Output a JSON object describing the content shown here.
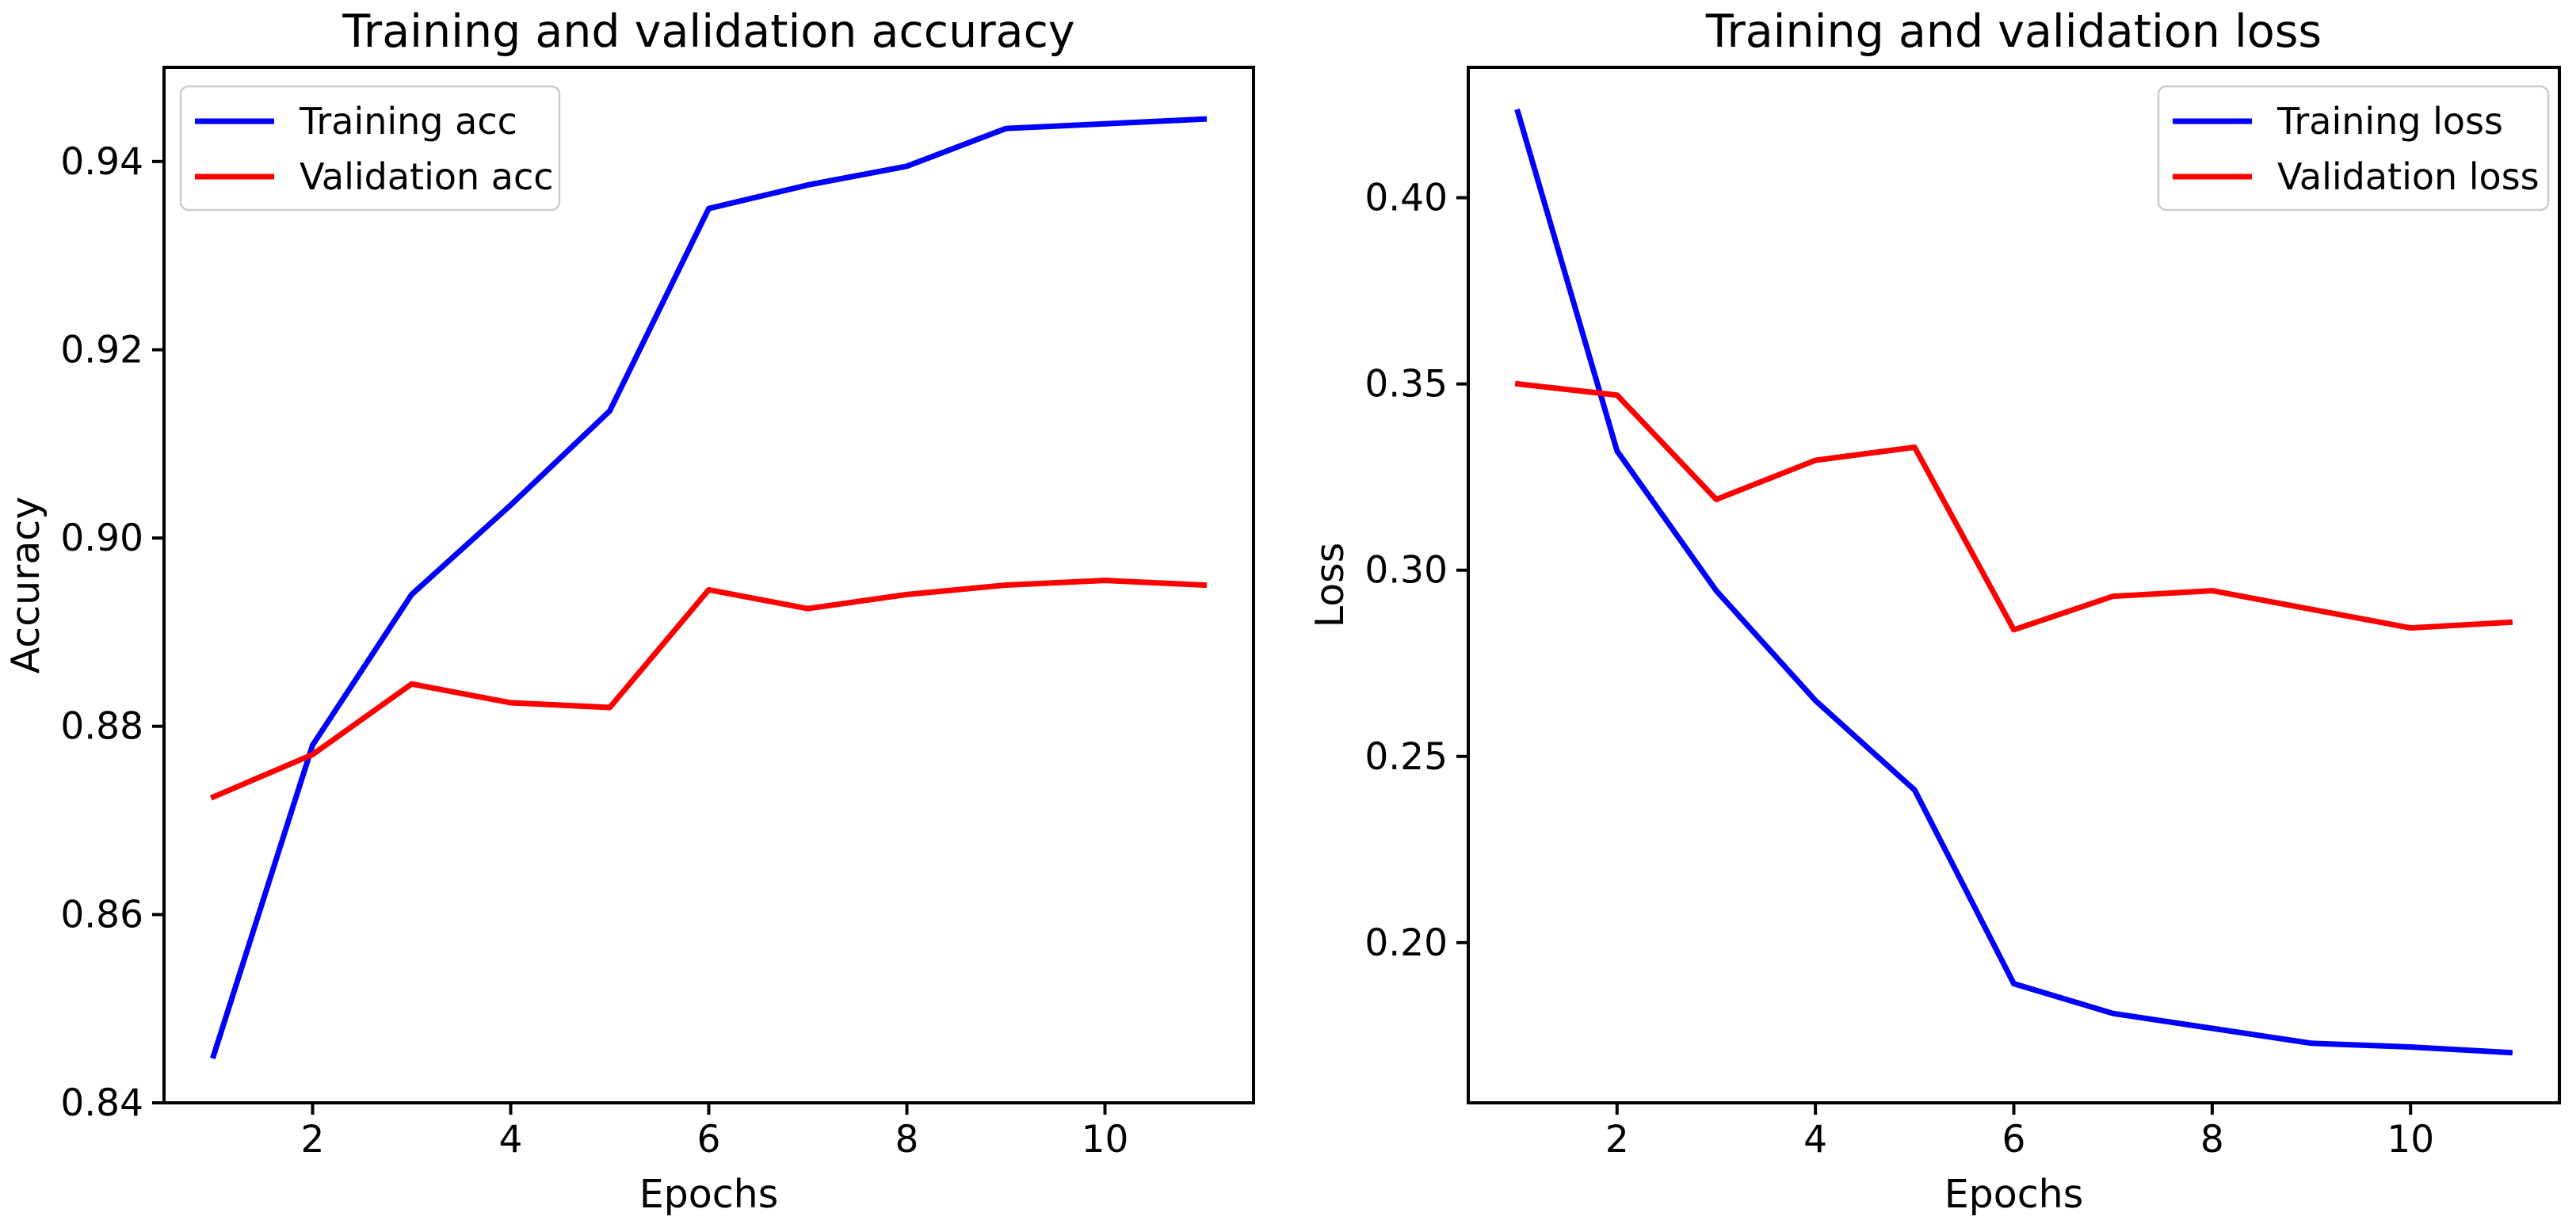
{
  "figure": {
    "background": "#ffffff",
    "text_color": "#000000",
    "accent_train": "#0000ff",
    "accent_val": "#ff0000"
  },
  "chart_data": [
    {
      "type": "line",
      "title": "Training and validation accuracy",
      "xlabel": "Epochs",
      "ylabel": "Accuracy",
      "x": [
        1,
        2,
        3,
        4,
        5,
        6,
        7,
        8,
        9,
        10,
        11
      ],
      "series": [
        {
          "name": "Training acc",
          "color": "#0000ff",
          "values": [
            0.845,
            0.878,
            0.894,
            0.9035,
            0.9135,
            0.935,
            0.9375,
            0.9395,
            0.9435,
            0.944,
            0.9445
          ]
        },
        {
          "name": "Validation acc",
          "color": "#ff0000",
          "values": [
            0.8725,
            0.877,
            0.8845,
            0.8825,
            0.882,
            0.8945,
            0.8925,
            0.894,
            0.895,
            0.8955,
            0.895
          ]
        }
      ],
      "xlim": [
        0.5,
        11.5
      ],
      "ylim": [
        0.84,
        0.95
      ],
      "xticks": [
        2,
        4,
        6,
        8,
        10
      ],
      "yticks": [
        0.84,
        0.86,
        0.88,
        0.9,
        0.92,
        0.94
      ],
      "tick_decimals": 2,
      "legend_position": "upper-left",
      "grid": false
    },
    {
      "type": "line",
      "title": "Training and validation loss",
      "xlabel": "Epochs",
      "ylabel": "Loss",
      "x": [
        1,
        2,
        3,
        4,
        5,
        6,
        7,
        8,
        9,
        10,
        11
      ],
      "series": [
        {
          "name": "Training loss",
          "color": "#0000ff",
          "values": [
            0.423,
            0.332,
            0.2945,
            0.265,
            0.241,
            0.189,
            0.181,
            0.177,
            0.173,
            0.172,
            0.1705
          ]
        },
        {
          "name": "Validation loss",
          "color": "#ff0000",
          "values": [
            0.35,
            0.347,
            0.319,
            0.3295,
            0.333,
            0.284,
            0.293,
            0.2945,
            0.2895,
            0.2845,
            0.286
          ]
        }
      ],
      "xlim": [
        0.5,
        11.5
      ],
      "ylim": [
        0.157,
        0.435
      ],
      "xticks": [
        2,
        4,
        6,
        8,
        10
      ],
      "yticks": [
        0.2,
        0.25,
        0.3,
        0.35,
        0.4
      ],
      "tick_decimals": 2,
      "legend_position": "upper-right",
      "grid": false
    }
  ]
}
